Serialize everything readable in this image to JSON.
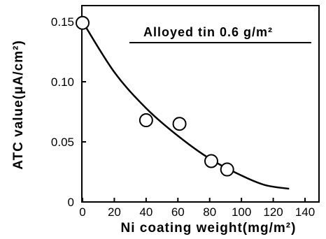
{
  "chart_data": {
    "type": "scatter",
    "title": "",
    "xlabel": "Ni coating weight(mg/m²)",
    "ylabel": "ATC value(μA/cm²)",
    "xlim": [
      0,
      140
    ],
    "ylim": [
      0,
      0.15
    ],
    "x_ticks": [
      "0",
      "20",
      "40",
      "60",
      "80",
      "100",
      "120",
      "140"
    ],
    "y_ticks": [
      "0",
      "0.05",
      "0.10",
      "0.15"
    ],
    "annotation": "Alloyed  tin 0.6 g/m²",
    "grid": false,
    "points": [
      {
        "x": 0,
        "y": 0.149
      },
      {
        "x": 40,
        "y": 0.068
      },
      {
        "x": 61,
        "y": 0.065
      },
      {
        "x": 81,
        "y": 0.034
      },
      {
        "x": 91,
        "y": 0.027
      }
    ],
    "trend_curve": [
      {
        "x": 0,
        "y": 0.15
      },
      {
        "x": 20,
        "y": 0.108
      },
      {
        "x": 40,
        "y": 0.078
      },
      {
        "x": 60,
        "y": 0.055
      },
      {
        "x": 80,
        "y": 0.036
      },
      {
        "x": 100,
        "y": 0.022
      },
      {
        "x": 115,
        "y": 0.014
      },
      {
        "x": 130,
        "y": 0.011
      }
    ]
  }
}
